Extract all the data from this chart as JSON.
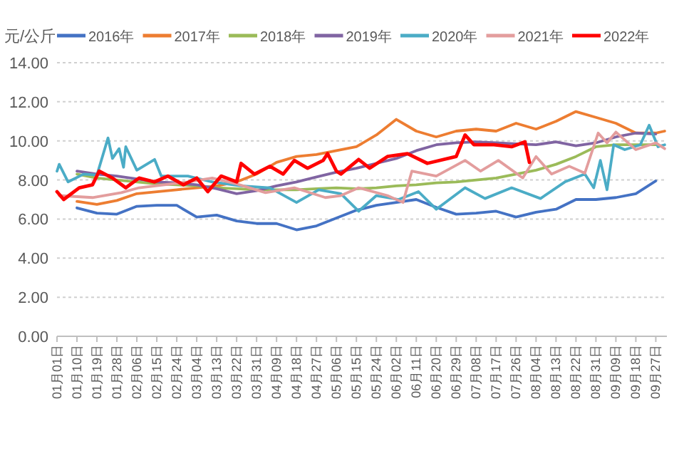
{
  "chart_data": {
    "type": "line",
    "ylabel": "元/公斤",
    "legend": "top",
    "grid": "y",
    "xlim": [
      "--01-01",
      "--10-02"
    ],
    "xticks": [
      {
        "value": "--01-01",
        "label": "01月01日"
      },
      {
        "value": "--01-10",
        "label": "01月10日"
      },
      {
        "value": "--01-19",
        "label": "01月19日"
      },
      {
        "value": "--01-28",
        "label": "01月28日"
      },
      {
        "value": "--02-06",
        "label": "02月06日"
      },
      {
        "value": "--02-15",
        "label": "02月15日"
      },
      {
        "value": "--02-24",
        "label": "02月24日"
      },
      {
        "value": "--03-04",
        "label": "03月04日"
      },
      {
        "value": "--03-13",
        "label": "03月13日"
      },
      {
        "value": "--03-22",
        "label": "03月22日"
      },
      {
        "value": "--03-31",
        "label": "03月31日"
      },
      {
        "value": "--04-09",
        "label": "04月09日"
      },
      {
        "value": "--04-18",
        "label": "04月18日"
      },
      {
        "value": "--04-27",
        "label": "04月27日"
      },
      {
        "value": "--05-06",
        "label": "05月06日"
      },
      {
        "value": "--05-15",
        "label": "05月15日"
      },
      {
        "value": "--05-24",
        "label": "05月24日"
      },
      {
        "value": "--06-02",
        "label": "06月02日"
      },
      {
        "value": "--06-11",
        "label": "06月11日"
      },
      {
        "value": "--06-20",
        "label": "06月20日"
      },
      {
        "value": "--06-29",
        "label": "06月29日"
      },
      {
        "value": "--07-08",
        "label": "07月08日"
      },
      {
        "value": "--07-17",
        "label": "07月17日"
      },
      {
        "value": "--07-26",
        "label": "07月26日"
      },
      {
        "value": "--08-04",
        "label": "08月04日"
      },
      {
        "value": "--08-13",
        "label": "08月13日"
      },
      {
        "value": "--08-22",
        "label": "08月22日"
      },
      {
        "value": "--08-31",
        "label": "08月31日"
      },
      {
        "value": "--09-09",
        "label": "09月09日"
      },
      {
        "value": "--09-18",
        "label": "09月18日"
      },
      {
        "value": "--09-27",
        "label": "09月27日"
      }
    ],
    "ylim": [
      0,
      14
    ],
    "yticks": [
      {
        "value": 0,
        "label": "0.00"
      },
      {
        "value": 2,
        "label": "2.00"
      },
      {
        "value": 4,
        "label": "4.00"
      },
      {
        "value": 6,
        "label": "6.00"
      },
      {
        "value": 8,
        "label": "8.00"
      },
      {
        "value": 10,
        "label": "10.00"
      },
      {
        "value": 12,
        "label": "12.00"
      },
      {
        "value": 14,
        "label": "14.00"
      }
    ],
    "series": [
      {
        "name": "2016年",
        "color": "#4472c4",
        "x": [
          "--01-10",
          "--01-19",
          "--01-28",
          "--02-06",
          "--02-15",
          "--02-24",
          "--03-04",
          "--03-13",
          "--03-22",
          "--03-31",
          "--04-09",
          "--04-18",
          "--04-27",
          "--05-06",
          "--05-15",
          "--05-24",
          "--06-02",
          "--06-11",
          "--06-20",
          "--06-29",
          "--07-08",
          "--07-17",
          "--07-26",
          "--08-04",
          "--08-13",
          "--08-22",
          "--08-31",
          "--09-09",
          "--09-18",
          "--09-27"
        ],
        "values": [
          6.57,
          6.3,
          6.25,
          6.65,
          6.7,
          6.7,
          6.1,
          6.2,
          5.9,
          5.77,
          5.77,
          5.45,
          5.65,
          6.05,
          6.45,
          6.7,
          6.85,
          7.0,
          6.6,
          6.25,
          6.3,
          6.4,
          6.1,
          6.35,
          6.5,
          7.0,
          7.0,
          7.1,
          7.3,
          7.95
        ]
      },
      {
        "name": "2017年",
        "color": "#ed7d31",
        "x": [
          "--01-10",
          "--01-19",
          "--01-28",
          "--02-06",
          "--02-15",
          "--02-24",
          "--03-04",
          "--03-13",
          "--03-22",
          "--03-31",
          "--04-09",
          "--04-18",
          "--04-27",
          "--05-06",
          "--05-15",
          "--05-24",
          "--06-02",
          "--06-11",
          "--06-20",
          "--06-29",
          "--07-08",
          "--07-17",
          "--07-26",
          "--08-04",
          "--08-13",
          "--08-22",
          "--08-31",
          "--09-09",
          "--09-18",
          "--09-27",
          "--10-01"
        ],
        "values": [
          6.9,
          6.75,
          6.95,
          7.3,
          7.4,
          7.5,
          7.6,
          7.7,
          7.9,
          8.3,
          8.9,
          9.2,
          9.3,
          9.5,
          9.7,
          10.3,
          11.1,
          10.5,
          10.2,
          10.5,
          10.6,
          10.5,
          10.9,
          10.6,
          11.0,
          11.5,
          11.2,
          10.9,
          10.4,
          10.4,
          10.5
        ]
      },
      {
        "name": "2018年",
        "color": "#9bbb59",
        "x": [
          "--01-10",
          "--01-19",
          "--01-28",
          "--02-06",
          "--02-15",
          "--02-24",
          "--03-04",
          "--03-13",
          "--03-22",
          "--03-31",
          "--04-09",
          "--04-18",
          "--04-27",
          "--05-06",
          "--05-15",
          "--05-24",
          "--06-02",
          "--06-11",
          "--06-20",
          "--06-29",
          "--07-08",
          "--07-17",
          "--07-26",
          "--08-04",
          "--08-13",
          "--08-22",
          "--08-31",
          "--09-09",
          "--09-18",
          "--09-27"
        ],
        "values": [
          8.3,
          8.1,
          8.0,
          7.9,
          7.8,
          7.75,
          7.7,
          7.6,
          7.55,
          7.5,
          7.5,
          7.5,
          7.55,
          7.6,
          7.55,
          7.6,
          7.7,
          7.75,
          7.85,
          7.9,
          8.0,
          8.1,
          8.3,
          8.5,
          8.8,
          9.2,
          9.7,
          9.8,
          9.8,
          9.8
        ]
      },
      {
        "name": "2019年",
        "color": "#8064a2",
        "x": [
          "--01-10",
          "--01-19",
          "--01-28",
          "--02-06",
          "--02-15",
          "--02-24",
          "--03-04",
          "--03-13",
          "--03-22",
          "--03-31",
          "--04-09",
          "--04-18",
          "--04-27",
          "--05-06",
          "--05-15",
          "--05-24",
          "--06-02",
          "--06-11",
          "--06-20",
          "--06-29",
          "--07-08",
          "--07-17",
          "--07-26",
          "--08-04",
          "--08-13",
          "--08-22",
          "--08-31",
          "--09-09",
          "--09-18",
          "--09-27"
        ],
        "values": [
          8.45,
          8.3,
          8.2,
          8.05,
          7.9,
          7.85,
          7.75,
          7.55,
          7.3,
          7.45,
          7.7,
          7.9,
          8.15,
          8.4,
          8.6,
          8.85,
          9.1,
          9.5,
          9.8,
          9.9,
          9.95,
          9.9,
          9.85,
          9.8,
          9.95,
          9.75,
          9.9,
          10.2,
          10.4,
          10.35
        ]
      },
      {
        "name": "2020年",
        "color": "#4bacc6",
        "x": [
          "--01-01",
          "--01-02",
          "--01-06",
          "--01-13",
          "--01-19",
          "--01-24",
          "--01-26",
          "--01-29",
          "--01-31",
          "--02-01",
          "--02-06",
          "--02-14",
          "--02-17",
          "--02-29",
          "--03-11",
          "--03-24",
          "--04-06",
          "--04-18",
          "--04-28",
          "--05-08",
          "--05-16",
          "--05-24",
          "--06-03",
          "--06-12",
          "--06-20",
          "--07-03",
          "--07-12",
          "--07-24",
          "--08-06",
          "--08-17",
          "--08-26",
          "--08-30",
          "--09-02",
          "--09-05",
          "--09-08",
          "--09-13",
          "--09-20",
          "--09-24",
          "--09-28",
          "--10-01"
        ],
        "values": [
          8.45,
          8.8,
          7.9,
          8.3,
          8.25,
          10.15,
          9.1,
          9.6,
          8.65,
          9.7,
          8.5,
          9.05,
          8.2,
          8.2,
          7.9,
          7.7,
          7.6,
          6.85,
          7.5,
          7.3,
          6.4,
          7.2,
          7.0,
          7.4,
          6.5,
          7.6,
          7.05,
          7.6,
          7.05,
          7.9,
          8.3,
          7.6,
          9.0,
          7.5,
          9.8,
          9.55,
          9.8,
          10.8,
          9.7,
          9.8
        ]
      },
      {
        "name": "2021年",
        "color": "#e39d9d",
        "x": [
          "--01-02",
          "--01-17",
          "--01-30",
          "--02-07",
          "--02-29",
          "--03-11",
          "--03-22",
          "--04-04",
          "--04-17",
          "--05-01",
          "--05-08",
          "--05-16",
          "--05-29",
          "--06-05",
          "--06-09",
          "--06-20",
          "--07-03",
          "--07-10",
          "--07-18",
          "--07-29",
          "--08-04",
          "--08-11",
          "--08-19",
          "--08-26",
          "--09-01",
          "--09-05",
          "--09-09",
          "--09-18",
          "--09-27",
          "--10-01"
        ],
        "values": [
          7.2,
          7.1,
          7.35,
          7.6,
          7.9,
          8.1,
          7.8,
          7.35,
          7.6,
          7.1,
          7.2,
          7.6,
          7.2,
          6.85,
          8.45,
          8.2,
          9.0,
          8.45,
          9.0,
          8.1,
          9.2,
          8.3,
          8.7,
          8.35,
          10.4,
          9.9,
          10.45,
          9.55,
          9.9,
          9.6
        ]
      },
      {
        "name": "2022年",
        "color": "#ff0000",
        "x": [
          "--01-01",
          "--01-04",
          "--01-11",
          "--01-17",
          "--01-20",
          "--01-26",
          "--02-01",
          "--02-07",
          "--02-14",
          "--02-20",
          "--02-27",
          "--03-04",
          "--03-09",
          "--03-15",
          "--03-22",
          "--03-24",
          "--03-30",
          "--04-06",
          "--04-12",
          "--04-17",
          "--04-23",
          "--04-30",
          "--05-02",
          "--05-06",
          "--05-08",
          "--05-16",
          "--05-21",
          "--05-29",
          "--06-07",
          "--06-16",
          "--06-29",
          "--07-03",
          "--07-07",
          "--07-16",
          "--07-24",
          "--07-30",
          "--08-01"
        ],
        "values": [
          7.4,
          7.0,
          7.6,
          7.75,
          8.45,
          8.1,
          7.6,
          8.1,
          7.9,
          8.2,
          7.75,
          8.1,
          7.4,
          8.2,
          7.9,
          8.85,
          8.3,
          8.7,
          8.3,
          9.0,
          8.6,
          9.0,
          9.35,
          8.45,
          8.3,
          9.05,
          8.6,
          9.2,
          9.35,
          8.85,
          9.2,
          10.3,
          9.8,
          9.8,
          9.7,
          9.95,
          8.9
        ]
      }
    ]
  }
}
